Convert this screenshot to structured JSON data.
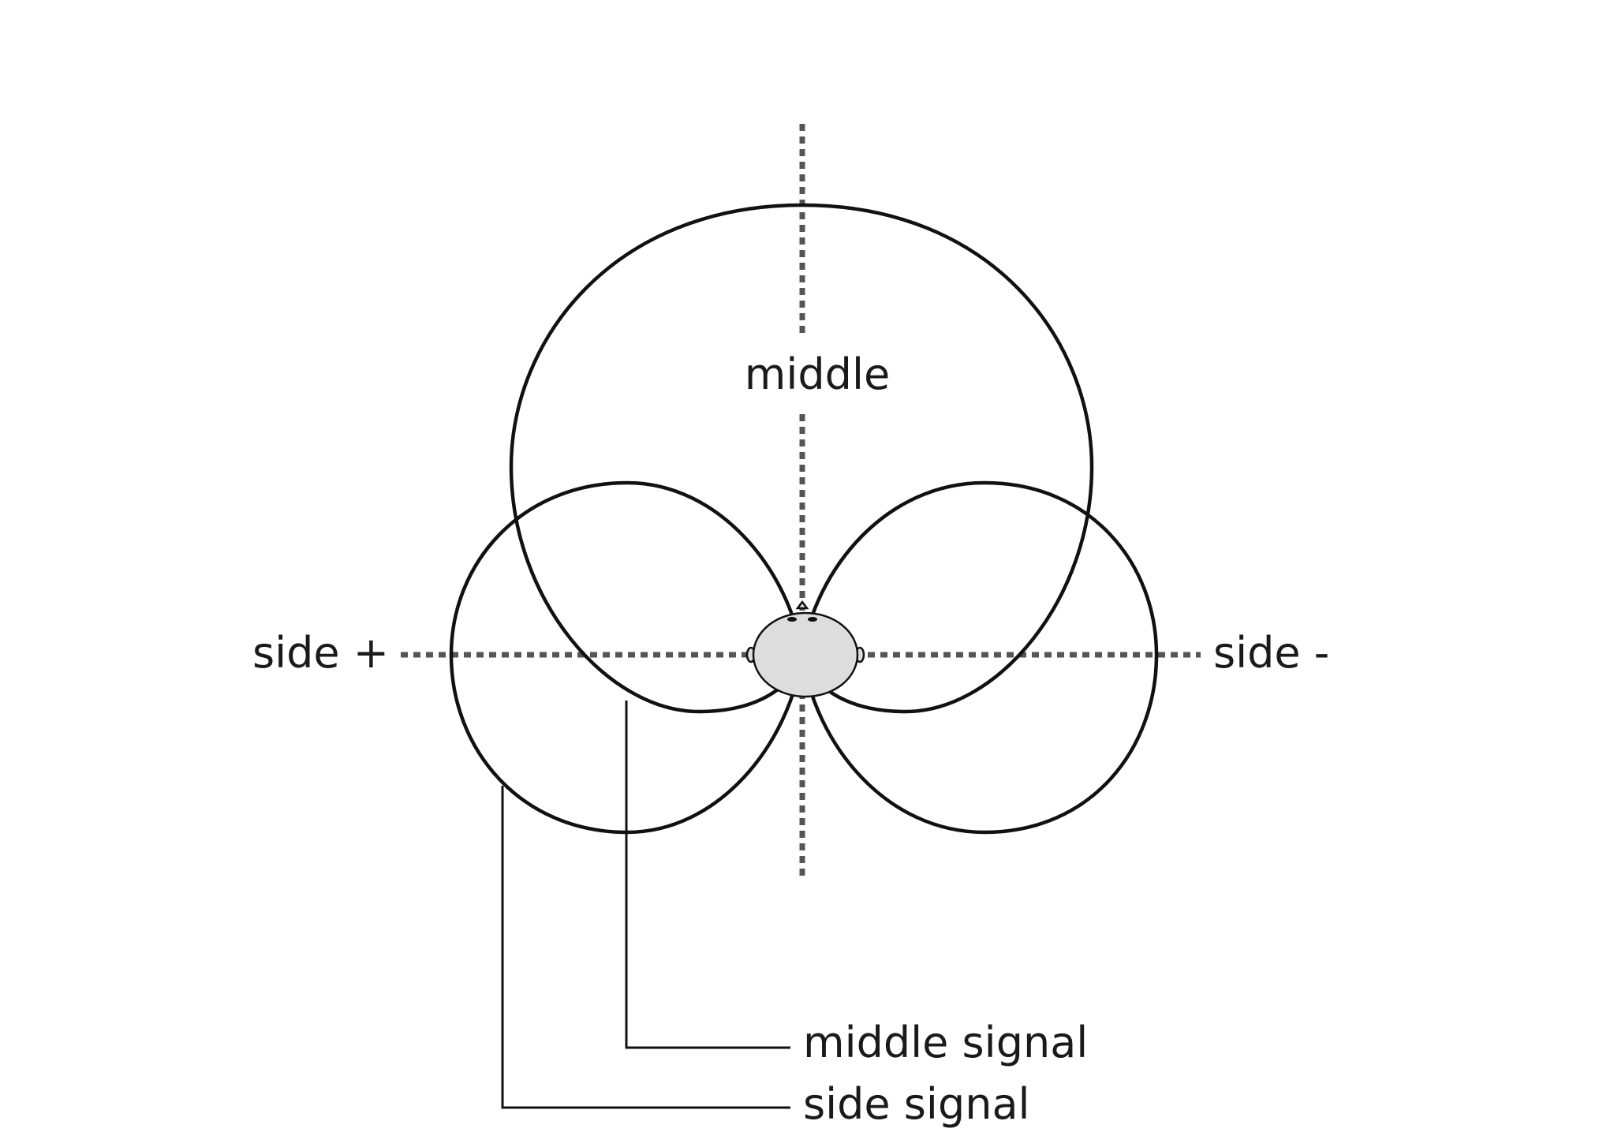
{
  "labels": {
    "middle": "middle",
    "side_plus": "side +",
    "side_minus": "side -",
    "middle_signal": "middle signal",
    "side_signal": "side signal"
  },
  "colors": {
    "line": "#111111",
    "axis": "#555555",
    "head_fill": "#dddddd",
    "background": "#ffffff"
  }
}
